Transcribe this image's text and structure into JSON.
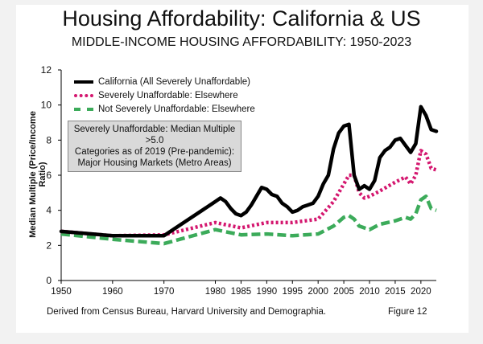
{
  "page": {
    "source": "Derived from Census Bureau, Harvard University and Demographia.",
    "figure_label": "Figure 12"
  },
  "legend": {
    "note_lines": [
      "Severely Unaffordable: Median Multiple >5.0",
      "Categories as of 2019 (Pre-pandemic):",
      "Major Housing Markets (Metro Areas)"
    ]
  },
  "chart_data": {
    "type": "line",
    "title": "Housing Affordability: California & US",
    "subtitle": "MIDDLE-INCOME HOUSING AFFORDABILITY: 1950-2023",
    "xlabel": "",
    "ylabel": "Median Multiple (Price/Income Ratio)",
    "xlim": [
      1950,
      2023
    ],
    "ylim": [
      0,
      12
    ],
    "x_ticks": [
      "1950",
      "1960",
      "1970",
      "1980",
      "1985",
      "1990",
      "1995",
      "2000",
      "2005",
      "2010",
      "2015",
      "2020"
    ],
    "x_tick_values": [
      1950,
      1960,
      1970,
      1980,
      1985,
      1990,
      1995,
      2000,
      2005,
      2010,
      2015,
      2020
    ],
    "y_ticks": [
      "0",
      "2",
      "4",
      "6",
      "8",
      "10",
      "12"
    ],
    "y_tick_values": [
      0,
      2,
      4,
      6,
      8,
      10,
      12
    ],
    "series": [
      {
        "name": "California (All Severely Unaffordable)",
        "color": "#000000",
        "style": "solid",
        "x": [
          1950,
          1960,
          1970,
          1980,
          1981,
          1982,
          1983,
          1984,
          1985,
          1986,
          1987,
          1988,
          1989,
          1990,
          1991,
          1992,
          1993,
          1994,
          1995,
          1996,
          1997,
          1998,
          1999,
          2000,
          2001,
          2002,
          2003,
          2004,
          2005,
          2006,
          2007,
          2008,
          2009,
          2010,
          2011,
          2012,
          2013,
          2014,
          2015,
          2016,
          2017,
          2018,
          2019,
          2020,
          2021,
          2022,
          2023
        ],
        "y": [
          2.8,
          2.55,
          2.55,
          4.5,
          4.7,
          4.5,
          4.1,
          3.8,
          3.7,
          3.9,
          4.3,
          4.8,
          5.3,
          5.2,
          4.9,
          4.8,
          4.4,
          4.2,
          3.9,
          4.0,
          4.2,
          4.3,
          4.4,
          4.8,
          5.5,
          6.0,
          7.5,
          8.4,
          8.8,
          8.9,
          6.0,
          5.2,
          5.4,
          5.2,
          5.7,
          7.0,
          7.4,
          7.6,
          8.0,
          8.1,
          7.7,
          7.3,
          7.8,
          9.9,
          9.4,
          8.6,
          8.5
        ]
      },
      {
        "name": "Severely Unaffordable: Elsewhere",
        "color": "#d4176f",
        "style": "dotted",
        "x": [
          1950,
          1960,
          1970,
          1980,
          1985,
          1990,
          1995,
          2000,
          2003,
          2005,
          2006,
          2007,
          2008,
          2009,
          2010,
          2012,
          2015,
          2017,
          2018,
          2019,
          2020,
          2021,
          2022,
          2023
        ],
        "y": [
          2.8,
          2.55,
          2.6,
          3.3,
          3.0,
          3.3,
          3.3,
          3.5,
          4.5,
          5.5,
          6.0,
          6.0,
          5.0,
          4.7,
          4.8,
          5.1,
          5.6,
          5.9,
          5.5,
          6.0,
          7.4,
          7.2,
          6.4,
          6.3
        ]
      },
      {
        "name": "Not Severely Unaffordable: Elsewhere",
        "color": "#3cab5a",
        "style": "dashed",
        "x": [
          1950,
          1960,
          1970,
          1980,
          1985,
          1990,
          1995,
          2000,
          2003,
          2005,
          2006,
          2007,
          2008,
          2009,
          2010,
          2012,
          2015,
          2017,
          2018,
          2019,
          2020,
          2021,
          2022,
          2023
        ],
        "y": [
          2.65,
          2.35,
          2.1,
          2.9,
          2.6,
          2.65,
          2.55,
          2.65,
          3.1,
          3.6,
          3.7,
          3.5,
          3.1,
          3.0,
          2.9,
          3.2,
          3.4,
          3.6,
          3.5,
          3.8,
          4.6,
          4.8,
          4.1,
          4.0
        ]
      }
    ]
  }
}
